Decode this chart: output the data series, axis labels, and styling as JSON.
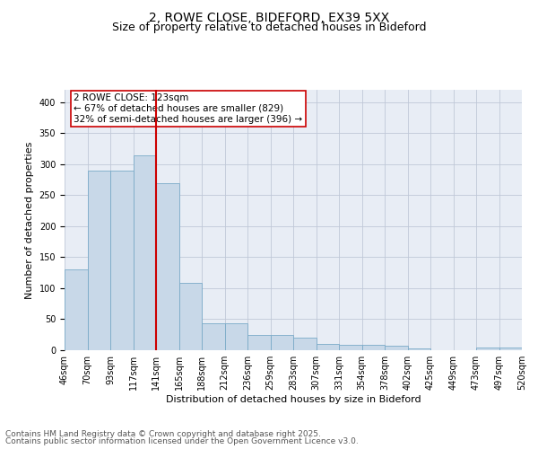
{
  "title1": "2, ROWE CLOSE, BIDEFORD, EX39 5XX",
  "title2": "Size of property relative to detached houses in Bideford",
  "xlabel": "Distribution of detached houses by size in Bideford",
  "ylabel": "Number of detached properties",
  "bin_labels": [
    "46sqm",
    "70sqm",
    "93sqm",
    "117sqm",
    "141sqm",
    "165sqm",
    "188sqm",
    "212sqm",
    "236sqm",
    "259sqm",
    "283sqm",
    "307sqm",
    "331sqm",
    "354sqm",
    "378sqm",
    "402sqm",
    "425sqm",
    "449sqm",
    "473sqm",
    "497sqm",
    "520sqm"
  ],
  "bar_heights": [
    130,
    290,
    290,
    315,
    270,
    108,
    43,
    43,
    25,
    25,
    20,
    10,
    9,
    8,
    7,
    3,
    0,
    0,
    4,
    4
  ],
  "bar_color": "#c8d8e8",
  "bar_edge_color": "#7aaac8",
  "property_line_x": 4,
  "property_line_color": "#cc0000",
  "annotation_text": "2 ROWE CLOSE: 123sqm\n← 67% of detached houses are smaller (829)\n32% of semi-detached houses are larger (396) →",
  "annotation_box_color": "#ffffff",
  "annotation_box_edge": "#cc0000",
  "ylim": [
    0,
    420
  ],
  "yticks": [
    0,
    50,
    100,
    150,
    200,
    250,
    300,
    350,
    400
  ],
  "grid_color": "#c0c8d8",
  "background_color": "#e8edf5",
  "footer1": "Contains HM Land Registry data © Crown copyright and database right 2025.",
  "footer2": "Contains public sector information licensed under the Open Government Licence v3.0.",
  "title_fontsize": 10,
  "subtitle_fontsize": 9,
  "axis_label_fontsize": 8,
  "tick_fontsize": 7,
  "annotation_fontsize": 7.5,
  "footer_fontsize": 6.5
}
